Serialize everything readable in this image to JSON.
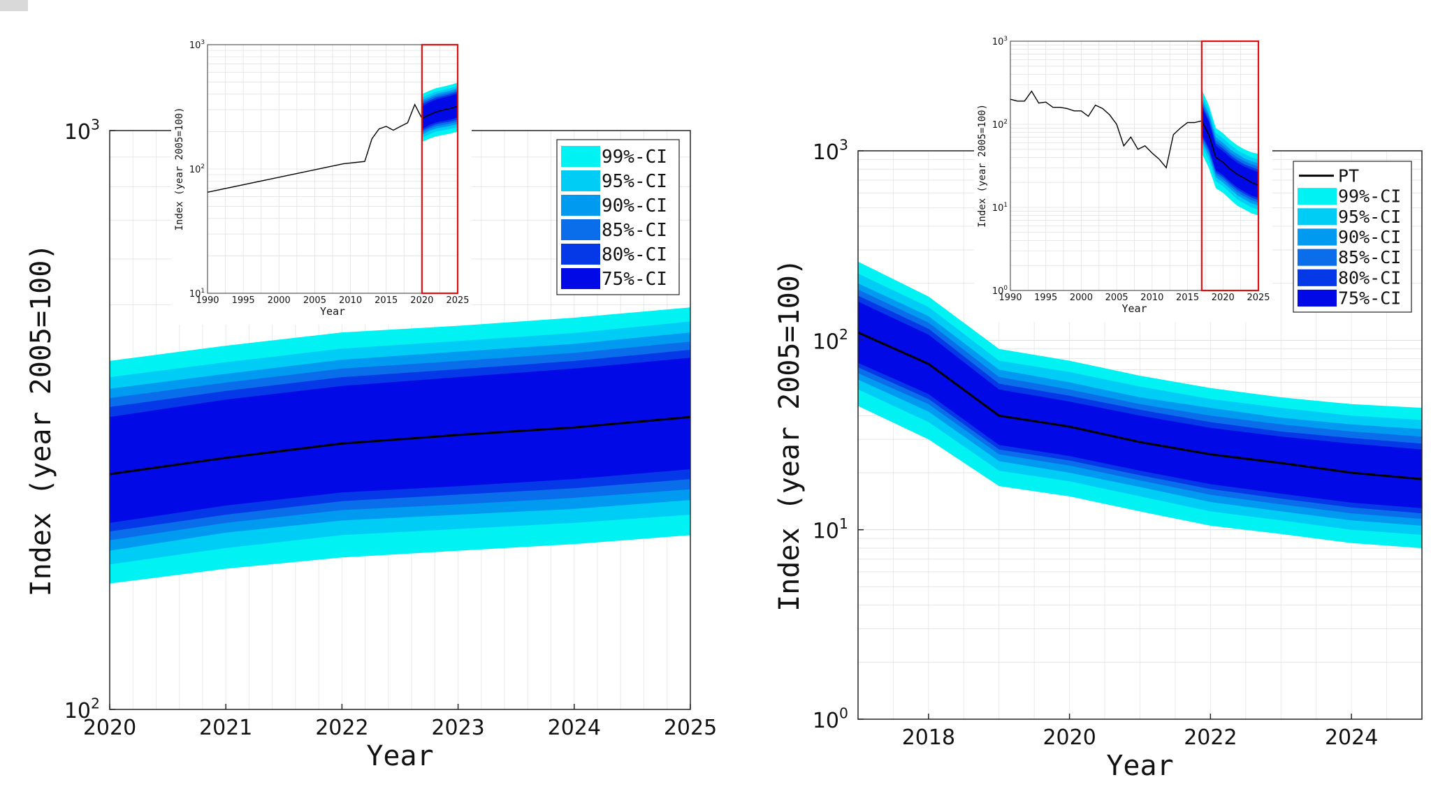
{
  "chart_data": [
    {
      "id": "left-main",
      "type": "area",
      "xlabel": "Year",
      "ylabel": "Index (year 2005=100)",
      "xlim": [
        2020,
        2025
      ],
      "ylim": [
        100,
        1000
      ],
      "yscale": "log",
      "xticks": [
        "2020",
        "2021",
        "2022",
        "2023",
        "2024",
        "2025"
      ],
      "yticks": [
        {
          "base": "10",
          "exp": "2"
        },
        {
          "base": "10",
          "exp": "3"
        }
      ],
      "grid": true,
      "x": [
        2020,
        2021,
        2022,
        2023,
        2024,
        2025
      ],
      "median": [
        255,
        272,
        288,
        298,
        307,
        320
      ],
      "bands": [
        {
          "name": "99%-CI",
          "color": "#00F2F2",
          "lower": [
            165,
            175,
            183,
            188,
            193,
            200
          ],
          "upper": [
            400,
            425,
            448,
            460,
            475,
            495
          ]
        },
        {
          "name": "95%-CI",
          "color": "#00CDF5",
          "lower": [
            178,
            190,
            200,
            205,
            210,
            217
          ],
          "upper": [
            375,
            398,
            420,
            433,
            447,
            468
          ]
        },
        {
          "name": "90%-CI",
          "color": "#009BF0",
          "lower": [
            188,
            202,
            212,
            217,
            222,
            230
          ],
          "upper": [
            358,
            380,
            402,
            415,
            428,
            448
          ]
        },
        {
          "name": "85%-CI",
          "color": "#0A6EEB",
          "lower": [
            196,
            210,
            221,
            226,
            232,
            240
          ],
          "upper": [
            345,
            367,
            388,
            400,
            413,
            432
          ]
        },
        {
          "name": "80%-CI",
          "color": "#0538E6",
          "lower": [
            203,
            217,
            229,
            235,
            241,
            250
          ],
          "upper": [
            333,
            355,
            375,
            387,
            400,
            418
          ]
        },
        {
          "name": "75%-CI",
          "color": "#0009E6",
          "lower": [
            210,
            225,
            237,
            243,
            250,
            260
          ],
          "upper": [
            320,
            343,
            362,
            375,
            388,
            405
          ]
        }
      ],
      "legend": "top-right",
      "inset": {
        "xlabel": "Year",
        "ylabel": "Index (year 2005=100)",
        "xlim": [
          1990,
          2025
        ],
        "ylim": [
          10,
          1000
        ],
        "yscale": "log",
        "xticks": [
          "1990",
          "1995",
          "2000",
          "2005",
          "2010",
          "2015",
          "2020",
          "2025"
        ],
        "yticks": [
          {
            "base": "10",
            "exp": "1"
          },
          {
            "base": "10",
            "exp": "2"
          },
          {
            "base": "10",
            "exp": "3"
          }
        ],
        "history_x": [
          1990,
          2009,
          2012,
          2013,
          2014,
          2015,
          2016,
          2017,
          2018,
          2019,
          2020
        ],
        "history_y": [
          65,
          110,
          115,
          175,
          210,
          220,
          205,
          220,
          235,
          330,
          255
        ],
        "highlight_box": [
          2020,
          2025
        ]
      }
    },
    {
      "id": "right-main",
      "type": "area",
      "xlabel": "Year",
      "ylabel": "Index (year 2005=100)",
      "xlim": [
        2017,
        2025
      ],
      "ylim": [
        1,
        1000
      ],
      "yscale": "log",
      "xticks": [
        "2018",
        "2020",
        "2022",
        "2024"
      ],
      "yticks": [
        {
          "base": "10",
          "exp": "0"
        },
        {
          "base": "10",
          "exp": "1"
        },
        {
          "base": "10",
          "exp": "2"
        },
        {
          "base": "10",
          "exp": "3"
        }
      ],
      "grid": true,
      "x": [
        2017,
        2018,
        2019,
        2020,
        2021,
        2022,
        2023,
        2024,
        2025
      ],
      "median": [
        110,
        75,
        40,
        35,
        29,
        25,
        22.5,
        20,
        18.5
      ],
      "bands": [
        {
          "name": "99%-CI",
          "color": "#00F2F2",
          "lower": [
            45,
            30,
            17,
            15,
            12.5,
            10.5,
            9.5,
            8.5,
            8
          ],
          "upper": [
            260,
            170,
            90,
            78,
            65,
            56,
            50,
            46,
            44
          ]
        },
        {
          "name": "95%-CI",
          "color": "#00CDF5",
          "lower": [
            55,
            37,
            20.5,
            18,
            15,
            12.5,
            11.2,
            10,
            9.4
          ],
          "upper": [
            225,
            150,
            78,
            68,
            57,
            49,
            44,
            40,
            38
          ]
        },
        {
          "name": "90%-CI",
          "color": "#009BF0",
          "lower": [
            62,
            42,
            23,
            20,
            16.8,
            14,
            12.5,
            11.2,
            10.5
          ],
          "upper": [
            200,
            134,
            70,
            60,
            50,
            44,
            39,
            36,
            34
          ]
        },
        {
          "name": "85%-CI",
          "color": "#0A6EEB",
          "lower": [
            67,
            46,
            25,
            21.8,
            18.2,
            15.3,
            13.6,
            12.2,
            11.4
          ],
          "upper": [
            185,
            124,
            64,
            55,
            46,
            40,
            36,
            33,
            31
          ]
        },
        {
          "name": "80%-CI",
          "color": "#0538E6",
          "lower": [
            72,
            49,
            26.5,
            23.2,
            19.4,
            16.4,
            14.6,
            13.1,
            12.2
          ],
          "upper": [
            172,
            115,
            59,
            51,
            43,
            37,
            33,
            30.5,
            28.5
          ]
        },
        {
          "name": "75%-CI",
          "color": "#0009E6",
          "lower": [
            76,
            52,
            28,
            24.5,
            20.5,
            17.4,
            15.5,
            13.9,
            13
          ],
          "upper": [
            160,
            107,
            55,
            47.5,
            40,
            34.5,
            31,
            28.5,
            26.5
          ]
        }
      ],
      "series_label": "PT",
      "legend": "top-right",
      "inset": {
        "xlabel": "Year",
        "ylabel": "Index (year 2005=100)",
        "xlim": [
          1990,
          2025
        ],
        "ylim": [
          1,
          1000
        ],
        "yscale": "log",
        "xticks": [
          "1990",
          "1995",
          "2000",
          "2005",
          "2010",
          "2015",
          "2020",
          "2025"
        ],
        "yticks": [
          {
            "base": "10",
            "exp": "0"
          },
          {
            "base": "10",
            "exp": "1"
          },
          {
            "base": "10",
            "exp": "2"
          },
          {
            "base": "10",
            "exp": "3"
          }
        ],
        "history_x": [
          1990,
          1991,
          1992,
          1993,
          1994,
          1995,
          1996,
          1997,
          1998,
          1999,
          2000,
          2001,
          2002,
          2003,
          2004,
          2005,
          2006,
          2007,
          2008,
          2009,
          2010,
          2011,
          2012,
          2013,
          2014,
          2015,
          2016,
          2017
        ],
        "history_y": [
          200,
          190,
          190,
          250,
          180,
          185,
          160,
          160,
          155,
          145,
          145,
          125,
          170,
          155,
          130,
          100,
          55,
          70,
          50,
          55,
          45,
          38,
          30,
          75,
          90,
          105,
          105,
          110
        ],
        "highlight_box": [
          2017,
          2025
        ]
      }
    }
  ]
}
